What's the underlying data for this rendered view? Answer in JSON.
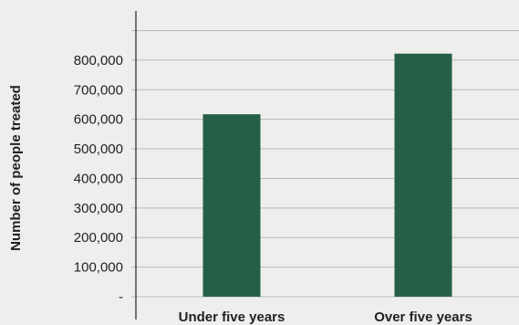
{
  "chart_data": {
    "type": "bar",
    "categories": [
      "Under five years",
      "Over five years"
    ],
    "values": [
      617000,
      822000
    ],
    "ylabel": "Number of people treated",
    "xlabel": "",
    "title": "",
    "ylim": [
      0,
      900000
    ],
    "yticks": [
      0,
      100000,
      200000,
      300000,
      400000,
      500000,
      600000,
      700000,
      800000,
      900000
    ],
    "ytick_labels": [
      "-",
      "100,000",
      "200,000",
      "300,000",
      "400,000",
      "500,000",
      "600,000",
      "700,000",
      "800,000",
      ""
    ],
    "grid": true,
    "legend": "none",
    "colors": {
      "bar": "#265f48",
      "grid": "#b9b9b9",
      "axis": "#222222",
      "background": "#eeeeed"
    }
  }
}
